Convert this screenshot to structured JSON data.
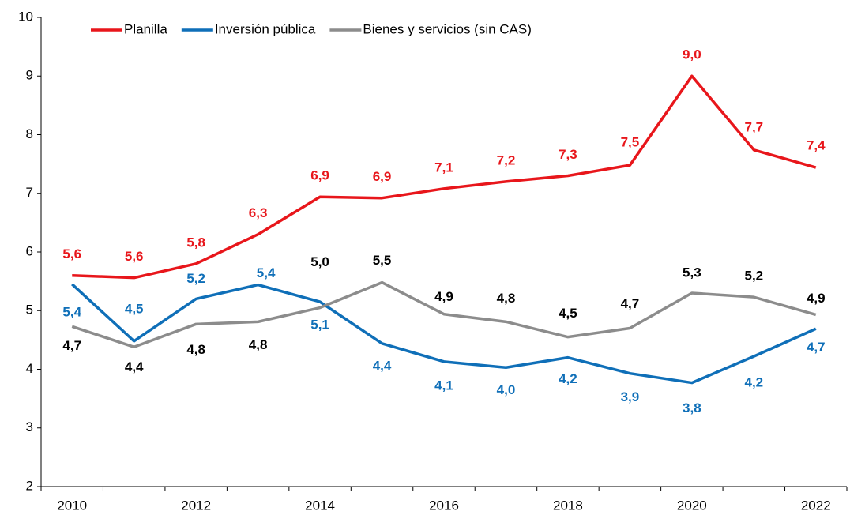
{
  "chart_data": {
    "type": "line",
    "categories": [
      "2010",
      null,
      "2012",
      null,
      "2014",
      null,
      "2016",
      null,
      "2018",
      null,
      "2020",
      null,
      "2022"
    ],
    "series": [
      {
        "name": "Planilla",
        "color": "#e8161b",
        "label_color": "#e8161b",
        "values": [
          5.6,
          5.56,
          5.8,
          6.3,
          6.94,
          6.92,
          7.08,
          7.2,
          7.3,
          7.48,
          9.0,
          7.74,
          7.44
        ],
        "value_labels": [
          "5,6",
          "5,6",
          "5,8",
          "6,3",
          "6,9",
          "6,9",
          "7,1",
          "7,2",
          "7,3",
          "7,5",
          "9,0",
          "7,7",
          "7,4"
        ]
      },
      {
        "name": "Inversión pública",
        "color": "#0f6fb8",
        "label_color": "#0f6fb8",
        "values": [
          5.45,
          4.48,
          5.2,
          5.44,
          5.15,
          4.44,
          4.13,
          4.03,
          4.2,
          3.93,
          3.77,
          4.22,
          4.69
        ],
        "value_labels": [
          "5,4",
          "4,5",
          "5,2",
          "5,4",
          "5,1",
          "4,4",
          "4,1",
          "4,0",
          "4,2",
          "3,9",
          "3,8",
          "4,2",
          "4,7"
        ]
      },
      {
        "name": "Bienes y servicios (sin CAS)",
        "color": "#8c8c8c",
        "label_color": "#000000",
        "values": [
          4.73,
          4.38,
          4.77,
          4.81,
          5.05,
          5.48,
          4.94,
          4.81,
          4.55,
          4.7,
          5.3,
          5.23,
          4.93
        ],
        "value_labels": [
          "4,7",
          "4,4",
          "4,8",
          "4,8",
          "5,0",
          "5,5",
          "4,9",
          "4,8",
          "4,5",
          "4,7",
          "5,3",
          "5,2",
          "4,9"
        ]
      }
    ],
    "ylim": [
      2,
      10
    ],
    "yticks": [
      2,
      3,
      4,
      5,
      6,
      7,
      8,
      9,
      10
    ],
    "legend": "top"
  }
}
